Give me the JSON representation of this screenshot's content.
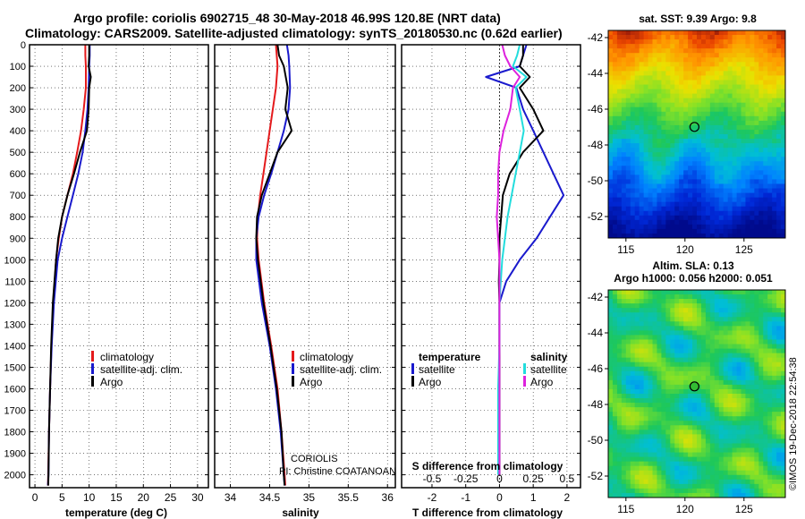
{
  "header": {
    "title_line1": "Argo profile: coriolis 6902715_48 30-May-2018 46.99S 120.8E (NRT data)",
    "title_line2": "Climatology: CARS2009. Satellite-adjusted climatology: synTS_20180530.nc (0.62d earlier)"
  },
  "colors": {
    "climatology": "#e41a1c",
    "satellite": "#1a1acd",
    "argo": "#000000",
    "sal_satellite": "#22dddd",
    "sal_argo": "#dd22dd"
  },
  "chart_data": [
    {
      "type": "line",
      "id": "temperature",
      "xlabel": "temperature (deg C)",
      "xlim": [
        -1,
        32
      ],
      "ylim": [
        2060,
        0
      ],
      "x_ticks": [
        0,
        5,
        10,
        15,
        20,
        25,
        30
      ],
      "y_ticks": [
        0,
        100,
        200,
        300,
        400,
        500,
        600,
        700,
        800,
        900,
        1000,
        1100,
        1200,
        1300,
        1400,
        1500,
        1600,
        1700,
        1800,
        1900,
        2000
      ],
      "legend": [
        "climatology",
        "satellite-adj. clim.",
        "Argo"
      ],
      "series": [
        {
          "name": "climatology",
          "color": "#e41a1c",
          "depth": [
            0,
            50,
            100,
            200,
            300,
            400,
            500,
            600,
            700,
            800,
            900,
            1000,
            1200,
            1400,
            1600,
            1800,
            2000,
            2050
          ],
          "values": [
            9.3,
            9.3,
            9.4,
            9.4,
            9.0,
            8.5,
            7.8,
            7.0,
            6.0,
            5.0,
            4.4,
            3.9,
            3.4,
            3.05,
            2.8,
            2.6,
            2.45,
            2.4
          ]
        },
        {
          "name": "satellite-adj. clim.",
          "color": "#1a1acd",
          "depth": [
            0,
            50,
            100,
            200,
            300,
            400,
            500,
            600,
            700,
            800,
            900,
            1000,
            1200,
            1400,
            1600,
            1800,
            2000,
            2050
          ],
          "values": [
            10.1,
            10.1,
            10.0,
            9.9,
            9.7,
            9.3,
            8.8,
            8.0,
            7.0,
            6.0,
            5.0,
            4.2,
            3.5,
            3.1,
            2.8,
            2.6,
            2.5,
            2.4
          ]
        },
        {
          "name": "Argo",
          "color": "#000000",
          "depth": [
            0,
            50,
            100,
            150,
            200,
            300,
            400,
            500,
            600,
            700,
            800,
            900,
            1000,
            1200,
            1400,
            1600,
            1800,
            2000,
            2050
          ],
          "values": [
            10.0,
            10.0,
            9.9,
            10.3,
            10.0,
            9.9,
            9.6,
            8.3,
            7.2,
            6.0,
            5.0,
            4.3,
            3.9,
            3.3,
            3.0,
            2.8,
            2.6,
            2.5,
            2.45
          ]
        }
      ]
    },
    {
      "type": "line",
      "id": "salinity",
      "xlabel": "salinity",
      "xlim": [
        33.8,
        36.1
      ],
      "ylim": [
        2060,
        0
      ],
      "x_ticks": [
        34,
        34.5,
        35,
        35.5,
        36
      ],
      "legend": [
        "climatology",
        "satellite-adj. clim.",
        "Argo"
      ],
      "note_line1": "CORIOLIS",
      "note_line2": "PI: Christine COATANOAN",
      "series": [
        {
          "name": "climatology",
          "color": "#e41a1c",
          "depth": [
            0,
            50,
            100,
            200,
            300,
            400,
            500,
            600,
            700,
            800,
            900,
            1000,
            1200,
            1400,
            1600,
            1800,
            2000,
            2050
          ],
          "values": [
            34.58,
            34.59,
            34.6,
            34.58,
            34.54,
            34.5,
            34.46,
            34.42,
            34.38,
            34.35,
            34.34,
            34.36,
            34.43,
            34.52,
            34.6,
            34.65,
            34.69,
            34.7
          ]
        },
        {
          "name": "satellite-adj. clim.",
          "color": "#1a1acd",
          "depth": [
            0,
            50,
            100,
            200,
            300,
            400,
            500,
            600,
            700,
            800,
            900,
            1000,
            1200,
            1400,
            1600,
            1800,
            2000,
            2050
          ],
          "values": [
            34.72,
            34.74,
            34.75,
            34.76,
            34.74,
            34.68,
            34.6,
            34.52,
            34.43,
            34.36,
            34.33,
            34.33,
            34.4,
            34.5,
            34.58,
            34.64,
            34.68,
            34.69
          ]
        },
        {
          "name": "Argo",
          "color": "#000000",
          "depth": [
            0,
            50,
            100,
            200,
            300,
            400,
            500,
            600,
            700,
            800,
            900,
            1000,
            1200,
            1400,
            1600,
            1800,
            2000,
            2050
          ],
          "values": [
            34.6,
            34.62,
            34.68,
            34.73,
            34.7,
            34.78,
            34.6,
            34.5,
            34.4,
            34.34,
            34.33,
            34.35,
            34.42,
            34.51,
            34.59,
            34.65,
            34.68,
            34.69
          ]
        }
      ]
    },
    {
      "type": "line",
      "id": "difference",
      "xlabel": "T difference from climatology",
      "xlabel_top": "S difference from climatology",
      "xlim": [
        -2.9,
        2.4
      ],
      "ylim": [
        2060,
        0
      ],
      "x_ticks": [
        -2,
        -1,
        0,
        1,
        2
      ],
      "x_ticks_top": [
        "-0.5",
        "-0.25",
        "0",
        "0.25",
        "0.5"
      ],
      "legend_temperature_title": "temperature",
      "legend_salinity_title": "salinity",
      "legend_temperature": [
        "satellite",
        "Argo"
      ],
      "legend_salinity": [
        "satellite",
        "Argo"
      ],
      "series": [
        {
          "name": "T satellite",
          "color": "#1a1acd",
          "depth": [
            0,
            50,
            100,
            150,
            200,
            300,
            400,
            500,
            600,
            700,
            800,
            900,
            1000,
            1100,
            1200,
            1400,
            1600,
            1800,
            2000
          ],
          "values": [
            0.8,
            0.7,
            0.6,
            -0.4,
            0.5,
            0.7,
            1.0,
            1.3,
            1.6,
            1.9,
            1.5,
            1.1,
            0.6,
            0.2,
            0.0,
            0.0,
            0.0,
            0.0,
            0.0
          ]
        },
        {
          "name": "T Argo",
          "color": "#000000",
          "depth": [
            0,
            50,
            100,
            150,
            200,
            300,
            400,
            500,
            600,
            700,
            800,
            900,
            1000,
            1100,
            1200,
            1400,
            1600,
            1800,
            2000
          ],
          "values": [
            0.7,
            0.7,
            0.6,
            0.9,
            0.6,
            1.0,
            1.3,
            0.7,
            0.3,
            0.1,
            0.05,
            0.0,
            0.0,
            -0.02,
            0.0,
            0.0,
            0.0,
            0.0,
            0.0
          ]
        },
        {
          "name": "S satellite",
          "color": "#22dddd",
          "depth": [
            0,
            50,
            100,
            150,
            200,
            300,
            400,
            500,
            600,
            700,
            800,
            900,
            1000,
            1100,
            1200,
            1400,
            1600,
            1800,
            2000
          ],
          "values": [
            0.15,
            0.13,
            0.1,
            0.2,
            0.12,
            0.15,
            0.18,
            0.15,
            0.12,
            0.09,
            0.06,
            0.04,
            0.02,
            0.01,
            0.0,
            0.0,
            -0.01,
            -0.01,
            -0.01
          ]
        },
        {
          "name": "S Argo",
          "color": "#dd22dd",
          "depth": [
            0,
            50,
            100,
            150,
            200,
            300,
            400,
            500,
            600,
            700,
            800,
            900,
            1000,
            1100,
            1200,
            1400,
            1600,
            1800,
            2000
          ],
          "values": [
            0.02,
            0.04,
            0.08,
            0.15,
            0.1,
            0.08,
            0.03,
            0.0,
            -0.01,
            -0.01,
            -0.02,
            -0.01,
            0.0,
            0.0,
            0.0,
            0.0,
            0.0,
            0.0,
            0.0
          ]
        }
      ]
    },
    {
      "type": "heatmap",
      "id": "sst-map",
      "title": "sat. SST: 9.39 Argo: 9.8",
      "xlim": [
        113.5,
        128.5
      ],
      "ylim": [
        -53.2,
        -41.6
      ],
      "x_ticks": [
        115,
        120,
        125
      ],
      "y_ticks": [
        -42,
        -44,
        -46,
        -48,
        -50,
        -52
      ],
      "marker": {
        "lon": 120.8,
        "lat": -46.99
      }
    },
    {
      "type": "heatmap",
      "id": "sla-map",
      "title_line1": "Altim. SLA: 0.13",
      "title_line2": "Argo h1000: 0.056 h2000: 0.051",
      "xlim": [
        113.5,
        128.5
      ],
      "ylim": [
        -53.2,
        -41.6
      ],
      "x_ticks": [
        115,
        120,
        125
      ],
      "y_ticks": [
        -42,
        -44,
        -46,
        -48,
        -50,
        -52
      ],
      "marker": {
        "lon": 120.8,
        "lat": -46.99
      },
      "credit": "©IMOS 19-Dec-2018 22:54:38"
    }
  ]
}
